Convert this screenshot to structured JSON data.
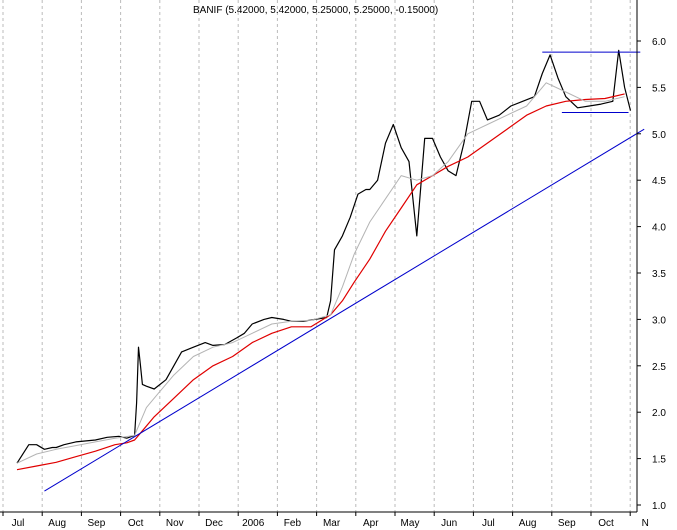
{
  "chart_data": {
    "type": "line",
    "title": "BANIF (5.42000, 5.42000, 5.25000, 5.25000, -0.15000)",
    "xlabel": "",
    "ylabel": "",
    "ylim": [
      1.0,
      6.2
    ],
    "y_ticks": [
      1.0,
      1.5,
      2.0,
      2.5,
      3.0,
      3.5,
      4.0,
      4.5,
      5.0,
      5.5,
      6.0
    ],
    "y_tick_labels": [
      "1.0",
      "1.5",
      "2.0",
      "2.5",
      "3.0",
      "3.5",
      "4.0",
      "4.5",
      "5.0",
      "5.5",
      "6.0"
    ],
    "x_tick_labels": [
      "Jul",
      "Aug",
      "Sep",
      "Oct",
      "Nov",
      "Dec",
      "2006",
      "Feb",
      "Mar",
      "Apr",
      "May",
      "Jun",
      "Jul",
      "Aug",
      "Sep",
      "Oct",
      "N"
    ],
    "grid": "vertical-dashed",
    "axis_position": "right",
    "colors": {
      "price": "#000000",
      "long_ma": "#e00000",
      "short_ma": "#b4b4b4",
      "trendline": "#0000cc",
      "grid": "#bbbbbb"
    },
    "series": [
      {
        "key": "price",
        "x": [
          0,
          0.3,
          0.5,
          0.7,
          0.9,
          1.0,
          1.2,
          1.5,
          2.0,
          2.3,
          2.6,
          2.8,
          3.0,
          3.05,
          3.1,
          3.15,
          3.2,
          3.3,
          3.5,
          3.8,
          4.0,
          4.2,
          4.5,
          4.8,
          5.0,
          5.3,
          5.6,
          5.8,
          6.0,
          6.3,
          6.5,
          6.8,
          7.0,
          7.3,
          7.6,
          7.9,
          8.0,
          8.1,
          8.3,
          8.5,
          8.7,
          8.9,
          9.0,
          9.2,
          9.4,
          9.6,
          9.8,
          10.0,
          10.2,
          10.4,
          10.6,
          10.8,
          11.0,
          11.2,
          11.4,
          11.6,
          11.8,
          12.0,
          12.3,
          12.6,
          12.9,
          13.2,
          13.4,
          13.6,
          13.8,
          14.0,
          14.3,
          14.6,
          14.9,
          15.2,
          15.35,
          15.5,
          15.65
        ],
        "values": [
          1.45,
          1.65,
          1.65,
          1.6,
          1.62,
          1.62,
          1.65,
          1.68,
          1.7,
          1.73,
          1.74,
          1.72,
          1.75,
          2.1,
          2.7,
          2.5,
          2.3,
          2.28,
          2.25,
          2.35,
          2.5,
          2.65,
          2.7,
          2.75,
          2.72,
          2.73,
          2.8,
          2.85,
          2.95,
          3.0,
          3.02,
          3.0,
          2.98,
          2.98,
          3.0,
          3.02,
          3.2,
          3.75,
          3.9,
          4.1,
          4.35,
          4.4,
          4.4,
          4.5,
          4.9,
          5.1,
          4.85,
          4.7,
          3.9,
          4.95,
          4.95,
          4.75,
          4.6,
          4.55,
          4.9,
          5.35,
          5.35,
          5.15,
          5.2,
          5.3,
          5.35,
          5.4,
          5.65,
          5.85,
          5.6,
          5.4,
          5.28,
          5.3,
          5.32,
          5.35,
          5.9,
          5.5,
          5.25
        ]
      },
      {
        "key": "long_ma",
        "x": [
          0,
          0.5,
          1.0,
          1.5,
          2.0,
          2.5,
          2.8,
          3.0,
          3.2,
          3.5,
          4.0,
          4.5,
          5.0,
          5.5,
          6.0,
          6.5,
          7.0,
          7.5,
          8.0,
          8.3,
          8.6,
          9.0,
          9.4,
          9.8,
          10.2,
          10.6,
          11.0,
          11.5,
          12.0,
          12.5,
          13.0,
          13.5,
          14.0,
          14.5,
          15.0,
          15.5
        ],
        "values": [
          1.38,
          1.42,
          1.46,
          1.52,
          1.58,
          1.65,
          1.67,
          1.7,
          1.8,
          1.95,
          2.15,
          2.35,
          2.5,
          2.6,
          2.75,
          2.85,
          2.92,
          2.92,
          3.05,
          3.2,
          3.4,
          3.65,
          3.95,
          4.2,
          4.45,
          4.55,
          4.65,
          4.75,
          4.9,
          5.05,
          5.2,
          5.3,
          5.35,
          5.37,
          5.38,
          5.43
        ]
      },
      {
        "key": "short_ma",
        "x": [
          0,
          0.5,
          1.0,
          1.5,
          2.0,
          2.5,
          3.0,
          3.3,
          3.6,
          4.0,
          4.5,
          5.0,
          5.5,
          6.0,
          6.5,
          7.0,
          7.5,
          8.0,
          8.3,
          8.6,
          9.0,
          9.4,
          9.8,
          10.2,
          10.6,
          11.0,
          11.5,
          12.0,
          12.5,
          13.0,
          13.5,
          14.0,
          14.5,
          15.0,
          15.5
        ],
        "values": [
          1.45,
          1.55,
          1.6,
          1.64,
          1.68,
          1.72,
          1.75,
          2.05,
          2.2,
          2.4,
          2.6,
          2.7,
          2.75,
          2.85,
          2.95,
          2.98,
          2.99,
          3.05,
          3.35,
          3.7,
          4.05,
          4.3,
          4.55,
          4.5,
          4.55,
          4.7,
          5.0,
          5.1,
          5.2,
          5.3,
          5.55,
          5.45,
          5.35,
          5.35,
          5.4
        ]
      }
    ],
    "lines": [
      {
        "key": "trendline",
        "x": [
          0.7,
          16.0
        ],
        "values": [
          1.15,
          5.05
        ]
      },
      {
        "key": "resistance",
        "x": [
          13.4,
          15.9
        ],
        "values": [
          5.88,
          5.88
        ]
      },
      {
        "key": "support",
        "x": [
          13.9,
          15.6
        ],
        "values": [
          5.23,
          5.23
        ]
      }
    ]
  }
}
